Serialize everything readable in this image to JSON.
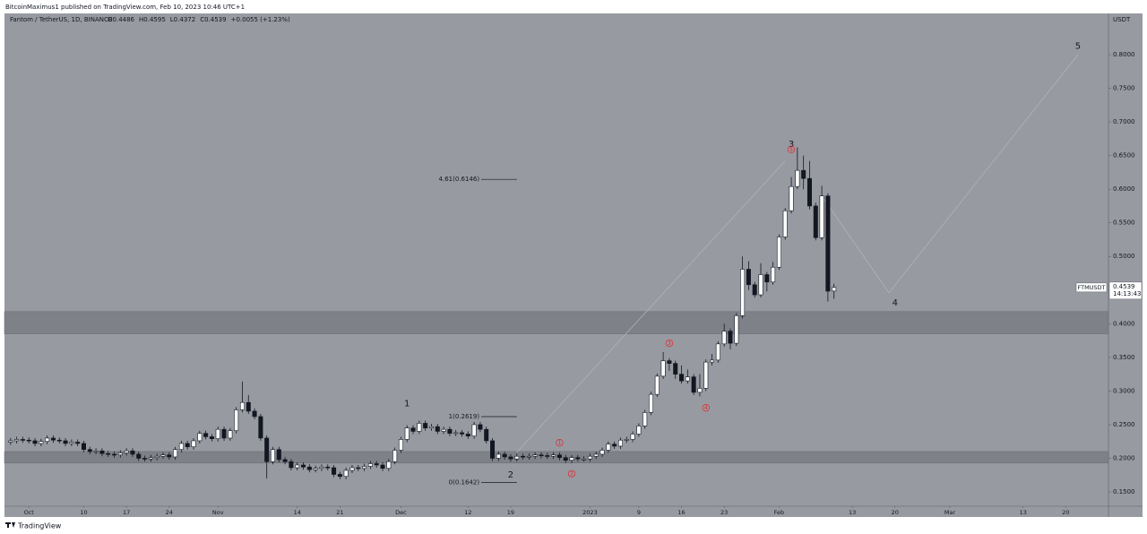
{
  "header": {
    "published": "BitcoinMaximus1 published on TradingView.com, Feb 10, 2023 10:46 UTC+1",
    "brand": "TradingView"
  },
  "chart_data": {
    "type": "candlestick",
    "symbol": "Fantom / TetherUS, 1D, BINANCE",
    "legend": [
      "O0.4486",
      "H0.4595",
      "L0.4372",
      "C0.4539",
      "+0.0055 (+1.23%)"
    ],
    "currency": "USDT",
    "up_color": "#ffffff",
    "down_color": "#131722",
    "background": "#989aa1",
    "dates": [
      "2022-09-28",
      "2022-09-29",
      "2022-09-30",
      "2022-10-01",
      "2022-10-02",
      "2022-10-03",
      "2022-10-04",
      "2022-10-05",
      "2022-10-06",
      "2022-10-07",
      "2022-10-08",
      "2022-10-09",
      "2022-10-10",
      "2022-10-11",
      "2022-10-12",
      "2022-10-13",
      "2022-10-14",
      "2022-10-15",
      "2022-10-16",
      "2022-10-17",
      "2022-10-18",
      "2022-10-19",
      "2022-10-20",
      "2022-10-21",
      "2022-10-22",
      "2022-10-23",
      "2022-10-24",
      "2022-10-25",
      "2022-10-26",
      "2022-10-27",
      "2022-10-28",
      "2022-10-29",
      "2022-10-30",
      "2022-10-31",
      "2022-11-01",
      "2022-11-02",
      "2022-11-03",
      "2022-11-04",
      "2022-11-05",
      "2022-11-06",
      "2022-11-07",
      "2022-11-08",
      "2022-11-09",
      "2022-11-10",
      "2022-11-11",
      "2022-11-12",
      "2022-11-13",
      "2022-11-14",
      "2022-11-15",
      "2022-11-16",
      "2022-11-17",
      "2022-11-18",
      "2022-11-19",
      "2022-11-20",
      "2022-11-21",
      "2022-11-22",
      "2022-11-23",
      "2022-11-24",
      "2022-11-25",
      "2022-11-26",
      "2022-11-27",
      "2022-11-28",
      "2022-11-29",
      "2022-11-30",
      "2022-12-01",
      "2022-12-02",
      "2022-12-03",
      "2022-12-04",
      "2022-12-05",
      "2022-12-06",
      "2022-12-07",
      "2022-12-08",
      "2022-12-09",
      "2022-12-10",
      "2022-12-11",
      "2022-12-12",
      "2022-12-13",
      "2022-12-14",
      "2022-12-15",
      "2022-12-16",
      "2022-12-17",
      "2022-12-18",
      "2022-12-19",
      "2022-12-20",
      "2022-12-21",
      "2022-12-22",
      "2022-12-23",
      "2022-12-24",
      "2022-12-25",
      "2022-12-26",
      "2022-12-27",
      "2022-12-28",
      "2022-12-29",
      "2022-12-30",
      "2022-12-31",
      "2023-01-01",
      "2023-01-02",
      "2023-01-03",
      "2023-01-04",
      "2023-01-05",
      "2023-01-06",
      "2023-01-07",
      "2023-01-08",
      "2023-01-09",
      "2023-01-10",
      "2023-01-11",
      "2023-01-12",
      "2023-01-13",
      "2023-01-14",
      "2023-01-15",
      "2023-01-16",
      "2023-01-17",
      "2023-01-18",
      "2023-01-19",
      "2023-01-20",
      "2023-01-21",
      "2023-01-22",
      "2023-01-23",
      "2023-01-24",
      "2023-01-25",
      "2023-01-26",
      "2023-01-27",
      "2023-01-28",
      "2023-01-29",
      "2023-01-30",
      "2023-01-31",
      "2023-02-01",
      "2023-02-02",
      "2023-02-03",
      "2023-02-04",
      "2023-02-05",
      "2023-02-06",
      "2023-02-07",
      "2023-02-08",
      "2023-02-09",
      "2023-02-10"
    ],
    "open": [
      0.224,
      0.226,
      0.228,
      0.227,
      0.226,
      0.222,
      0.225,
      0.23,
      0.227,
      0.226,
      0.222,
      0.224,
      0.222,
      0.213,
      0.21,
      0.211,
      0.207,
      0.206,
      0.205,
      0.208,
      0.211,
      0.206,
      0.2,
      0.199,
      0.201,
      0.203,
      0.205,
      0.202,
      0.213,
      0.222,
      0.217,
      0.226,
      0.237,
      0.232,
      0.229,
      0.243,
      0.23,
      0.241,
      0.272,
      0.283,
      0.27,
      0.262,
      0.23,
      0.195,
      0.213,
      0.198,
      0.195,
      0.186,
      0.19,
      0.187,
      0.183,
      0.185,
      0.187,
      0.186,
      0.176,
      0.173,
      0.182,
      0.186,
      0.185,
      0.188,
      0.192,
      0.19,
      0.185,
      0.195,
      0.212,
      0.228,
      0.245,
      0.24,
      0.252,
      0.245,
      0.247,
      0.24,
      0.243,
      0.237,
      0.238,
      0.236,
      0.233,
      0.25,
      0.243,
      0.226,
      0.2,
      0.206,
      0.202,
      0.199,
      0.203,
      0.202,
      0.203,
      0.205,
      0.204,
      0.203,
      0.205,
      0.201,
      0.197,
      0.201,
      0.199,
      0.199,
      0.203,
      0.206,
      0.212,
      0.221,
      0.218,
      0.227,
      0.228,
      0.236,
      0.248,
      0.268,
      0.295,
      0.322,
      0.345,
      0.341,
      0.325,
      0.315,
      0.321,
      0.298,
      0.304,
      0.343,
      0.346,
      0.37,
      0.389,
      0.371,
      0.412,
      0.481,
      0.458,
      0.443,
      0.473,
      0.462,
      0.484,
      0.529,
      0.568,
      0.604,
      0.628,
      0.616,
      0.575,
      0.528,
      0.59,
      0.4486
    ],
    "high": [
      0.23,
      0.232,
      0.232,
      0.231,
      0.23,
      0.229,
      0.234,
      0.234,
      0.231,
      0.23,
      0.228,
      0.228,
      0.226,
      0.217,
      0.215,
      0.215,
      0.211,
      0.21,
      0.212,
      0.215,
      0.215,
      0.21,
      0.204,
      0.205,
      0.207,
      0.209,
      0.209,
      0.217,
      0.226,
      0.226,
      0.23,
      0.241,
      0.241,
      0.236,
      0.247,
      0.247,
      0.245,
      0.276,
      0.314,
      0.294,
      0.274,
      0.266,
      0.234,
      0.217,
      0.217,
      0.202,
      0.199,
      0.194,
      0.194,
      0.191,
      0.189,
      0.191,
      0.191,
      0.19,
      0.18,
      0.186,
      0.19,
      0.19,
      0.192,
      0.196,
      0.196,
      0.194,
      0.199,
      0.216,
      0.232,
      0.249,
      0.249,
      0.256,
      0.256,
      0.251,
      0.251,
      0.247,
      0.247,
      0.242,
      0.242,
      0.24,
      0.254,
      0.254,
      0.247,
      0.23,
      0.21,
      0.21,
      0.206,
      0.207,
      0.207,
      0.207,
      0.209,
      0.209,
      0.208,
      0.209,
      0.209,
      0.205,
      0.205,
      0.205,
      0.203,
      0.207,
      0.21,
      0.216,
      0.225,
      0.225,
      0.231,
      0.232,
      0.24,
      0.252,
      0.272,
      0.299,
      0.326,
      0.358,
      0.349,
      0.345,
      0.338,
      0.332,
      0.325,
      0.325,
      0.347,
      0.355,
      0.374,
      0.4,
      0.393,
      0.416,
      0.5,
      0.493,
      0.462,
      0.49,
      0.477,
      0.492,
      0.533,
      0.572,
      0.618,
      0.662,
      0.65,
      0.642,
      0.58,
      0.605,
      0.594,
      0.4595
    ],
    "low": [
      0.22,
      0.222,
      0.223,
      0.222,
      0.218,
      0.218,
      0.221,
      0.223,
      0.222,
      0.218,
      0.218,
      0.218,
      0.209,
      0.206,
      0.206,
      0.203,
      0.202,
      0.201,
      0.201,
      0.204,
      0.202,
      0.196,
      0.195,
      0.195,
      0.197,
      0.199,
      0.198,
      0.198,
      0.209,
      0.213,
      0.213,
      0.222,
      0.228,
      0.225,
      0.225,
      0.226,
      0.226,
      0.237,
      0.268,
      0.266,
      0.258,
      0.226,
      0.17,
      0.191,
      0.194,
      0.191,
      0.182,
      0.182,
      0.183,
      0.179,
      0.179,
      0.181,
      0.182,
      0.172,
      0.169,
      0.169,
      0.178,
      0.181,
      0.181,
      0.184,
      0.186,
      0.181,
      0.181,
      0.191,
      0.208,
      0.224,
      0.236,
      0.236,
      0.241,
      0.241,
      0.236,
      0.236,
      0.233,
      0.233,
      0.232,
      0.229,
      0.229,
      0.239,
      0.222,
      0.196,
      0.196,
      0.198,
      0.195,
      0.195,
      0.198,
      0.198,
      0.199,
      0.2,
      0.199,
      0.199,
      0.197,
      0.193,
      0.193,
      0.195,
      0.195,
      0.195,
      0.199,
      0.202,
      0.208,
      0.214,
      0.214,
      0.223,
      0.224,
      0.232,
      0.244,
      0.264,
      0.291,
      0.318,
      0.33,
      0.318,
      0.311,
      0.311,
      0.294,
      0.292,
      0.3,
      0.338,
      0.342,
      0.366,
      0.362,
      0.367,
      0.408,
      0.45,
      0.439,
      0.439,
      0.448,
      0.458,
      0.48,
      0.525,
      0.564,
      0.6,
      0.6,
      0.57,
      0.524,
      0.524,
      0.433,
      0.4372
    ],
    "close": [
      0.226,
      0.228,
      0.227,
      0.226,
      0.222,
      0.225,
      0.23,
      0.227,
      0.226,
      0.222,
      0.224,
      0.222,
      0.213,
      0.21,
      0.211,
      0.207,
      0.206,
      0.205,
      0.208,
      0.211,
      0.206,
      0.2,
      0.199,
      0.201,
      0.203,
      0.205,
      0.202,
      0.213,
      0.222,
      0.217,
      0.226,
      0.237,
      0.232,
      0.229,
      0.243,
      0.23,
      0.241,
      0.272,
      0.283,
      0.27,
      0.262,
      0.23,
      0.195,
      0.213,
      0.198,
      0.195,
      0.186,
      0.19,
      0.187,
      0.183,
      0.185,
      0.187,
      0.186,
      0.176,
      0.173,
      0.182,
      0.186,
      0.185,
      0.188,
      0.192,
      0.19,
      0.185,
      0.195,
      0.212,
      0.228,
      0.245,
      0.24,
      0.252,
      0.245,
      0.247,
      0.24,
      0.243,
      0.237,
      0.238,
      0.236,
      0.233,
      0.25,
      0.243,
      0.226,
      0.2,
      0.206,
      0.202,
      0.199,
      0.203,
      0.202,
      0.203,
      0.205,
      0.204,
      0.203,
      0.205,
      0.201,
      0.197,
      0.201,
      0.199,
      0.199,
      0.203,
      0.206,
      0.212,
      0.221,
      0.218,
      0.227,
      0.228,
      0.236,
      0.248,
      0.268,
      0.295,
      0.322,
      0.345,
      0.341,
      0.325,
      0.315,
      0.321,
      0.298,
      0.304,
      0.343,
      0.346,
      0.37,
      0.389,
      0.371,
      0.412,
      0.481,
      0.458,
      0.443,
      0.473,
      0.462,
      0.484,
      0.529,
      0.568,
      0.604,
      0.628,
      0.616,
      0.575,
      0.528,
      0.59,
      0.4484,
      0.4539
    ],
    "xlim": [
      "2022-09-27",
      "2023-03-27"
    ],
    "xticks": [
      {
        "value": "2022-10-01",
        "label": "Oct"
      },
      {
        "value": "2022-10-10",
        "label": "10"
      },
      {
        "value": "2022-10-17",
        "label": "17"
      },
      {
        "value": "2022-10-24",
        "label": "24"
      },
      {
        "value": "2022-11-01",
        "label": "Nov"
      },
      {
        "value": "2022-11-14",
        "label": "14"
      },
      {
        "value": "2022-11-21",
        "label": "21"
      },
      {
        "value": "2022-12-01",
        "label": "Dec"
      },
      {
        "value": "2022-12-12",
        "label": "12"
      },
      {
        "value": "2022-12-19",
        "label": "19"
      },
      {
        "value": "2023-01-01",
        "label": "2023"
      },
      {
        "value": "2023-01-09",
        "label": "9"
      },
      {
        "value": "2023-01-16",
        "label": "16"
      },
      {
        "value": "2023-01-23",
        "label": "23"
      },
      {
        "value": "2023-02-01",
        "label": "Feb"
      },
      {
        "value": "2023-02-13",
        "label": "13"
      },
      {
        "value": "2023-02-20",
        "label": "20"
      },
      {
        "value": "2023-03-01",
        "label": "Mar"
      },
      {
        "value": "2023-03-13",
        "label": "13"
      },
      {
        "value": "2023-03-20",
        "label": "20"
      }
    ],
    "ylim": [
      0.1287,
      0.8613
    ],
    "yticks": [
      {
        "value": 0.15,
        "label": "0.1500"
      },
      {
        "value": 0.2,
        "label": "0.2000"
      },
      {
        "value": 0.25,
        "label": "0.2500"
      },
      {
        "value": 0.3,
        "label": "0.3000"
      },
      {
        "value": 0.35,
        "label": "0.3500"
      },
      {
        "value": 0.4,
        "label": "0.4000"
      },
      {
        "value": 0.45,
        "label": "0.4500"
      },
      {
        "value": 0.5,
        "label": "0.5000"
      },
      {
        "value": 0.55,
        "label": "0.5500"
      },
      {
        "value": 0.6,
        "label": "0.6000"
      },
      {
        "value": 0.65,
        "label": "0.6500"
      },
      {
        "value": 0.7,
        "label": "0.7000"
      },
      {
        "value": 0.75,
        "label": "0.7500"
      },
      {
        "value": 0.8,
        "label": "0.8000"
      }
    ],
    "last_price": {
      "symbol": "FTMUSDT",
      "value": 0.4539,
      "countdown": "14:13:43"
    },
    "zones": [
      {
        "from": 0.385,
        "to": 0.418
      },
      {
        "from": 0.193,
        "to": 0.21
      }
    ],
    "fib_levels": [
      {
        "label": "4.61(0.6146)",
        "value": 0.6146,
        "start": "2022-12-08",
        "end": "2022-12-20"
      },
      {
        "label": "1(0.2619)",
        "value": 0.2619,
        "start": "2022-12-08",
        "end": "2022-12-20"
      },
      {
        "label": "0(0.1642)",
        "value": 0.1642,
        "start": "2022-12-08",
        "end": "2022-12-20"
      }
    ],
    "projections": [
      [
        {
          "date": "2022-12-20",
          "price": 0.209
        },
        {
          "date": "2023-02-02",
          "price": 0.642
        }
      ],
      [
        {
          "date": "2023-02-08",
          "price": 0.59
        },
        {
          "date": "2023-02-19",
          "price": 0.446
        },
        {
          "date": "2023-03-22",
          "price": 0.8
        }
      ]
    ],
    "wave_labels": [
      {
        "label": "1",
        "date": "2022-12-02",
        "price": 0.281
      },
      {
        "label": "2",
        "date": "2022-12-19",
        "price": 0.175
      },
      {
        "label": "3",
        "date": "2023-02-03",
        "price": 0.667
      },
      {
        "label": "4",
        "date": "2023-02-20",
        "price": 0.431
      },
      {
        "label": "5",
        "date": "2023-03-22",
        "price": 0.813
      }
    ],
    "sub_wave_labels": [
      {
        "label": "1",
        "date": "2022-12-27",
        "price": 0.223
      },
      {
        "label": "2",
        "date": "2022-12-29",
        "price": 0.177
      },
      {
        "label": "3",
        "date": "2023-01-14",
        "price": 0.371
      },
      {
        "label": "4",
        "date": "2023-01-20",
        "price": 0.275
      },
      {
        "label": "5",
        "date": "2023-02-03",
        "price": 0.659
      }
    ]
  }
}
